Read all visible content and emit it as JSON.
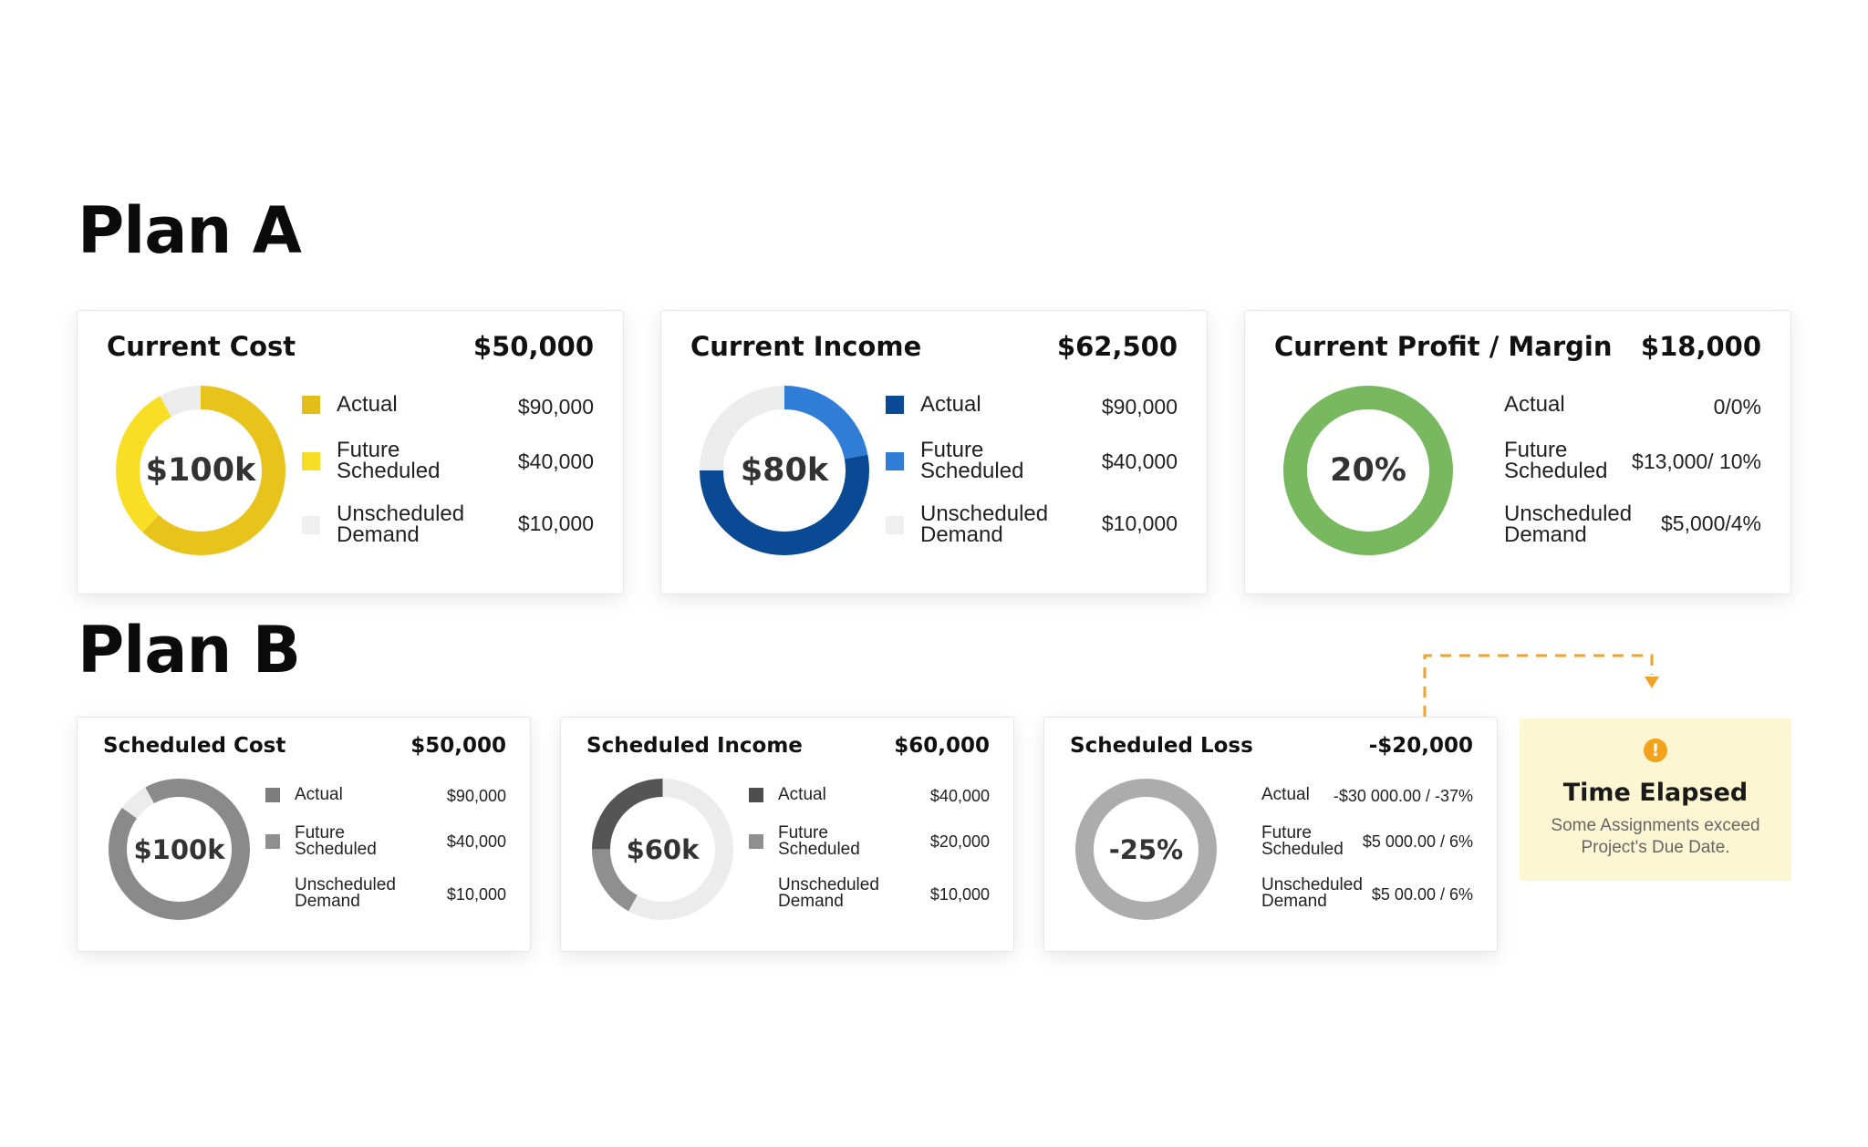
{
  "plan_a": {
    "title": "Plan A",
    "cards": [
      {
        "title": "Current Cost",
        "total": "$50,000",
        "center": "$100k",
        "ring": [
          {
            "value": 0.62,
            "color": "#e8c31c"
          },
          {
            "value": 0.3,
            "color": "#f8de24"
          },
          {
            "value": 0.08,
            "color": "#ececec"
          }
        ],
        "legend": [
          {
            "label": "Actual",
            "value": "$90,000",
            "color": "#e3bd1a"
          },
          {
            "label": "Future Scheduled",
            "value": "$40,000",
            "color": "#f7dd25"
          },
          {
            "label": "Unscheduled Demand",
            "value": "$10,000",
            "color": "#efefef"
          }
        ]
      },
      {
        "title": "Current Income",
        "total": "$62,500",
        "center": "$80k",
        "ring": [
          {
            "value": 0.22,
            "color": "#2f7dd6"
          },
          {
            "value": 0.53,
            "color": "#0a4a94"
          },
          {
            "value": 0.25,
            "color": "#ececec"
          }
        ],
        "legend": [
          {
            "label": "Actual",
            "value": "$90,000",
            "color": "#0a4a94"
          },
          {
            "label": "Future Scheduled",
            "value": "$40,000",
            "color": "#2f7dd6"
          },
          {
            "label": "Unscheduled Demand",
            "value": "$10,000",
            "color": "#efefef"
          }
        ]
      },
      {
        "title": "Current Profit / Margin",
        "total": "$18,000",
        "center": "20%",
        "ring": [
          {
            "value": 1.0,
            "color": "#78b960"
          }
        ],
        "legend": [
          {
            "label": "Actual",
            "value": "0/0%",
            "color": ""
          },
          {
            "label": "Future Scheduled",
            "value": "$13,000/ 10%",
            "color": ""
          },
          {
            "label": "Unscheduled Demand",
            "value": "$5,000/4%",
            "color": ""
          }
        ]
      }
    ]
  },
  "plan_b": {
    "title": "Plan B",
    "cards": [
      {
        "title": "Scheduled Cost",
        "total": "$50,000",
        "center": "$100k",
        "ring": [
          {
            "value": 0.85,
            "color": "#8a8a8a"
          },
          {
            "value": 0.07,
            "color": "#ececec"
          },
          {
            "value": 0.08,
            "color": "#8a8a8a"
          }
        ],
        "legend": [
          {
            "label": "Actual",
            "value": "$90,000",
            "color": "#7d7d7d"
          },
          {
            "label": "Future Scheduled",
            "value": "$40,000",
            "color": "#8f8f8f"
          },
          {
            "label": "Unscheduled Demand",
            "value": "$10,000",
            "color": ""
          }
        ]
      },
      {
        "title": "Scheduled Income",
        "total": "$60,000",
        "center": "$60k",
        "ring": [
          {
            "value": 0.58,
            "color": "#ececec"
          },
          {
            "value": 0.17,
            "color": "#8f8f8f"
          },
          {
            "value": 0.25,
            "color": "#555555"
          }
        ],
        "legend": [
          {
            "label": "Actual",
            "value": "$40,000",
            "color": "#4d4d4d"
          },
          {
            "label": "Future Scheduled",
            "value": "$20,000",
            "color": "#8f8f8f"
          },
          {
            "label": "Unscheduled Demand",
            "value": "$10,000",
            "color": ""
          }
        ]
      },
      {
        "title": "Scheduled Loss",
        "total": "-$20,000",
        "center": "-25%",
        "ring": [
          {
            "value": 1.0,
            "color": "#acacac"
          }
        ],
        "legend": [
          {
            "label": "Actual",
            "value": "-$30 000.00 / -37%",
            "color": ""
          },
          {
            "label": "Future Scheduled",
            "value": "$5 000.00 / 6%",
            "color": ""
          },
          {
            "label": "Unscheduled Demand",
            "value": "$5 00.00 / 6%",
            "color": ""
          }
        ]
      }
    ]
  },
  "alert": {
    "icon": "!",
    "icon_name": "warning-icon",
    "title": "Time Elapsed",
    "message": "Some Assignments exceed Project's Due Date.",
    "color": "#f2a21b"
  }
}
